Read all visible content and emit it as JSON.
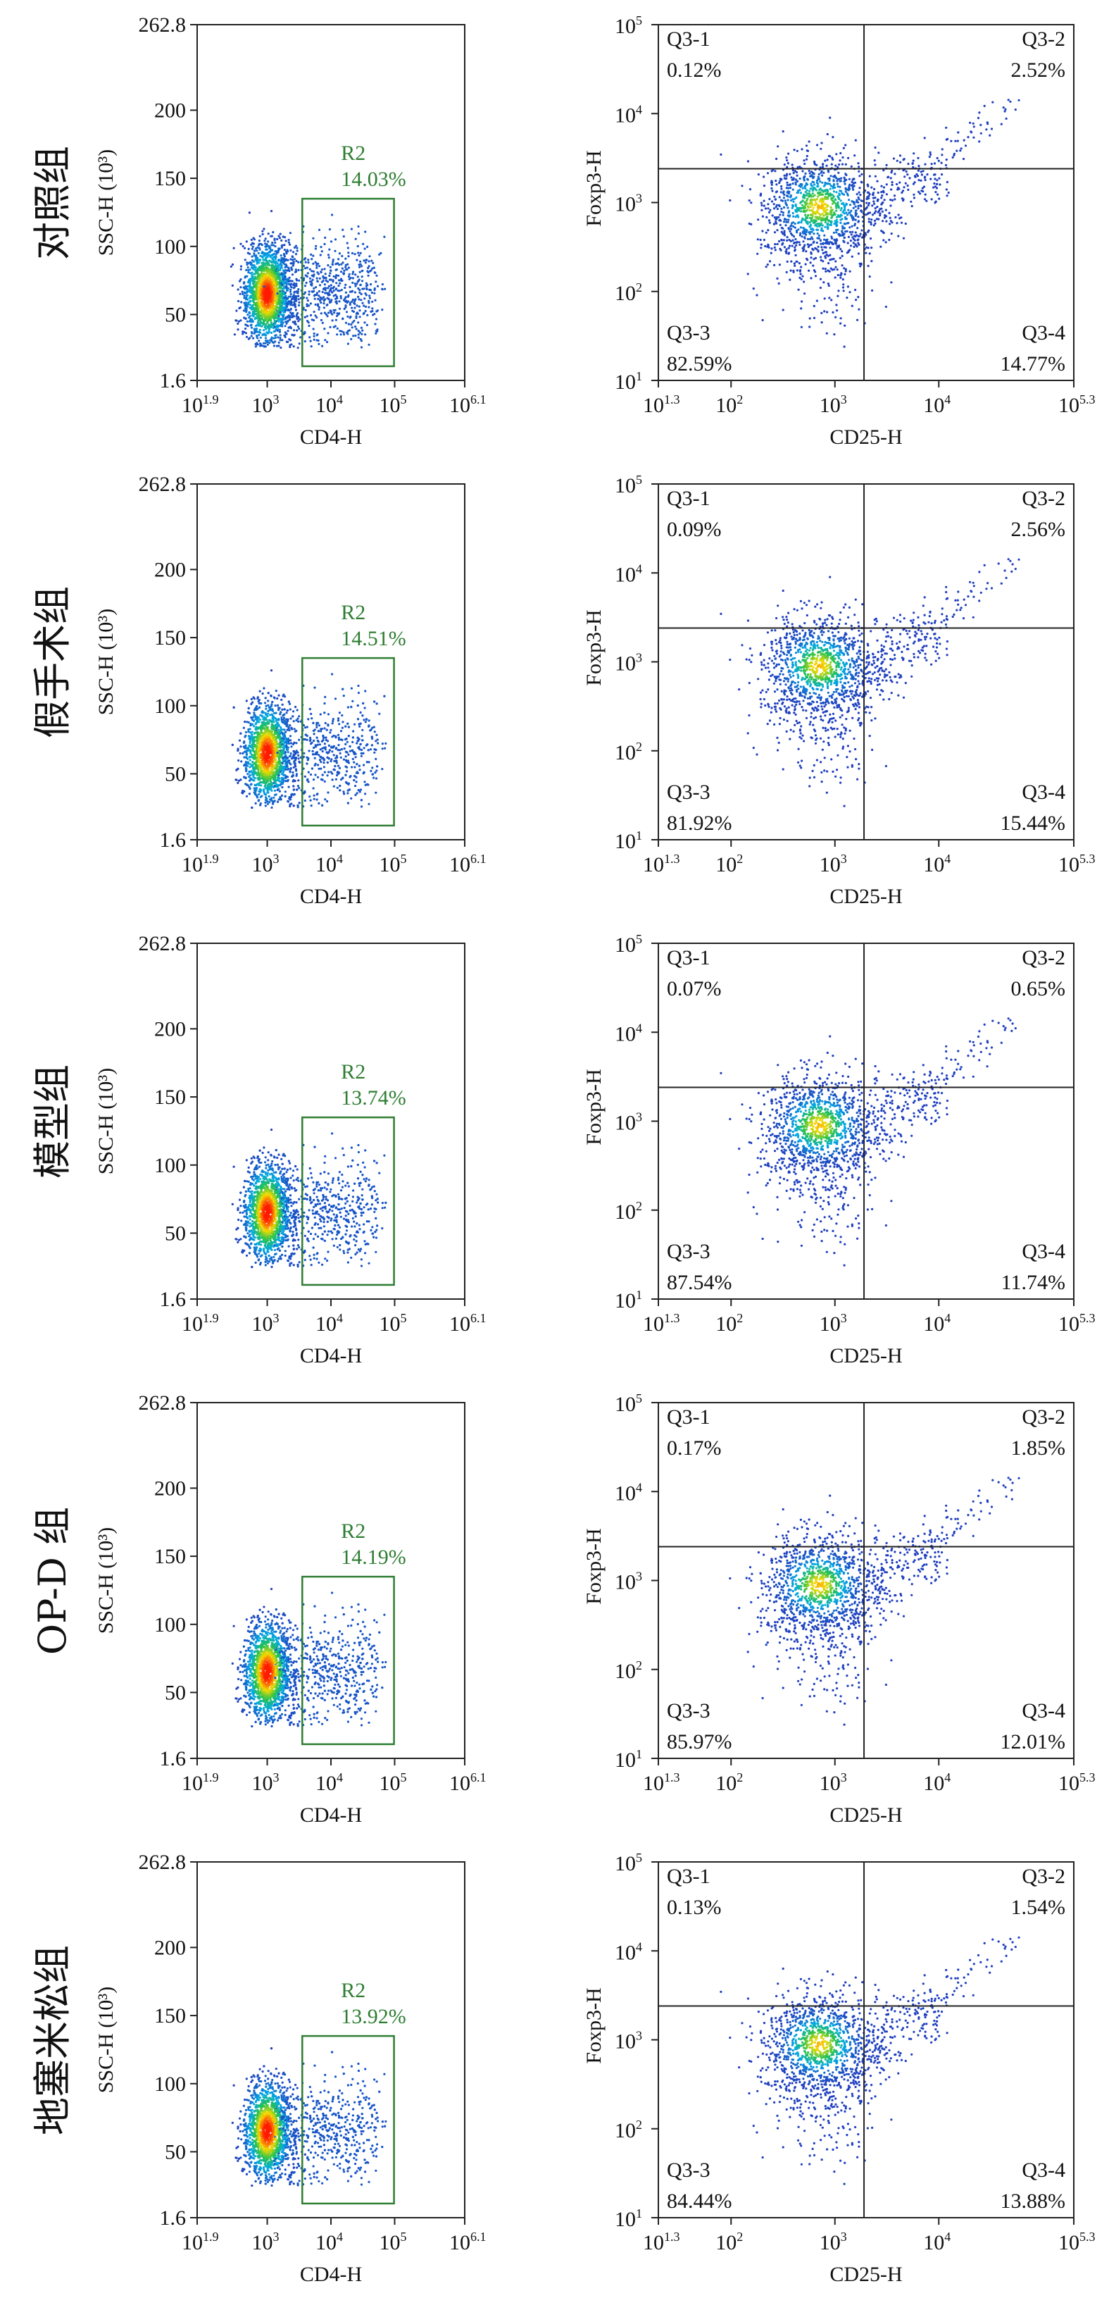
{
  "panels": [
    {
      "group_label": "对照组",
      "scatter": {
        "xlabel": "CD4-H",
        "ylabel": "SSC-H (10³)",
        "y_ticks": [
          "262.8",
          "200",
          "150",
          "100",
          "50",
          "1.6"
        ],
        "x_ticks": [
          {
            "base": "10",
            "exp": "1.9"
          },
          {
            "base": "10",
            "exp": "3"
          },
          {
            "base": "10",
            "exp": "4"
          },
          {
            "base": "10",
            "exp": "5"
          },
          {
            "base": "10",
            "exp": "6.1"
          }
        ],
        "gate_name": "R2",
        "gate_pct": "14.03%"
      },
      "quadrant": {
        "xlabel": "CD25-H",
        "ylabel": "Foxp3-H",
        "x_ticks": [
          {
            "base": "10",
            "exp": "1.3"
          },
          {
            "base": "10",
            "exp": "2"
          },
          {
            "base": "10",
            "exp": "3"
          },
          {
            "base": "10",
            "exp": "4"
          },
          {
            "base": "10",
            "exp": "5.3"
          }
        ],
        "y_ticks": [
          {
            "base": "10",
            "exp": "5"
          },
          {
            "base": "10",
            "exp": "4"
          },
          {
            "base": "10",
            "exp": "3"
          },
          {
            "base": "10",
            "exp": "2"
          },
          {
            "base": "10",
            "exp": "1"
          }
        ],
        "q1": {
          "name": "Q3-1",
          "pct": "0.12%"
        },
        "q2": {
          "name": "Q3-2",
          "pct": "2.52%"
        },
        "q3": {
          "name": "Q3-3",
          "pct": "82.59%"
        },
        "q4": {
          "name": "Q3-4",
          "pct": "14.77%"
        }
      }
    },
    {
      "group_label": "假手术组",
      "scatter": {
        "xlabel": "CD4-H",
        "ylabel": "SSC-H (10³)",
        "y_ticks": [
          "262.8",
          "200",
          "150",
          "100",
          "50",
          "1.6"
        ],
        "x_ticks": [
          {
            "base": "10",
            "exp": "1.9"
          },
          {
            "base": "10",
            "exp": "3"
          },
          {
            "base": "10",
            "exp": "4"
          },
          {
            "base": "10",
            "exp": "5"
          },
          {
            "base": "10",
            "exp": "6.1"
          }
        ],
        "gate_name": "R2",
        "gate_pct": "14.51%"
      },
      "quadrant": {
        "xlabel": "CD25-H",
        "ylabel": "Foxp3-H",
        "x_ticks": [
          {
            "base": "10",
            "exp": "1.3"
          },
          {
            "base": "10",
            "exp": "2"
          },
          {
            "base": "10",
            "exp": "3"
          },
          {
            "base": "10",
            "exp": "4"
          },
          {
            "base": "10",
            "exp": "5.3"
          }
        ],
        "y_ticks": [
          {
            "base": "10",
            "exp": "5"
          },
          {
            "base": "10",
            "exp": "4"
          },
          {
            "base": "10",
            "exp": "3"
          },
          {
            "base": "10",
            "exp": "2"
          },
          {
            "base": "10",
            "exp": "1"
          }
        ],
        "q1": {
          "name": "Q3-1",
          "pct": "0.09%"
        },
        "q2": {
          "name": "Q3-2",
          "pct": "2.56%"
        },
        "q3": {
          "name": "Q3-3",
          "pct": "81.92%"
        },
        "q4": {
          "name": "Q3-4",
          "pct": "15.44%"
        }
      }
    },
    {
      "group_label": "模型组",
      "scatter": {
        "xlabel": "CD4-H",
        "ylabel": "SSC-H (10³)",
        "y_ticks": [
          "262.8",
          "200",
          "150",
          "100",
          "50",
          "1.6"
        ],
        "x_ticks": [
          {
            "base": "10",
            "exp": "1.9"
          },
          {
            "base": "10",
            "exp": "3"
          },
          {
            "base": "10",
            "exp": "4"
          },
          {
            "base": "10",
            "exp": "5"
          },
          {
            "base": "10",
            "exp": "6.1"
          }
        ],
        "gate_name": "R2",
        "gate_pct": "13.74%"
      },
      "quadrant": {
        "xlabel": "CD25-H",
        "ylabel": "Foxp3-H",
        "x_ticks": [
          {
            "base": "10",
            "exp": "1.3"
          },
          {
            "base": "10",
            "exp": "2"
          },
          {
            "base": "10",
            "exp": "3"
          },
          {
            "base": "10",
            "exp": "4"
          },
          {
            "base": "10",
            "exp": "5.3"
          }
        ],
        "y_ticks": [
          {
            "base": "10",
            "exp": "5"
          },
          {
            "base": "10",
            "exp": "4"
          },
          {
            "base": "10",
            "exp": "3"
          },
          {
            "base": "10",
            "exp": "2"
          },
          {
            "base": "10",
            "exp": "1"
          }
        ],
        "q1": {
          "name": "Q3-1",
          "pct": "0.07%"
        },
        "q2": {
          "name": "Q3-2",
          "pct": "0.65%"
        },
        "q3": {
          "name": "Q3-3",
          "pct": "87.54%"
        },
        "q4": {
          "name": "Q3-4",
          "pct": "11.74%"
        }
      }
    },
    {
      "group_label": "OP-D 组",
      "scatter": {
        "xlabel": "CD4-H",
        "ylabel": "SSC-H (10³)",
        "y_ticks": [
          "262.8",
          "200",
          "150",
          "100",
          "50",
          "1.6"
        ],
        "x_ticks": [
          {
            "base": "10",
            "exp": "1.9"
          },
          {
            "base": "10",
            "exp": "3"
          },
          {
            "base": "10",
            "exp": "4"
          },
          {
            "base": "10",
            "exp": "5"
          },
          {
            "base": "10",
            "exp": "6.1"
          }
        ],
        "gate_name": "R2",
        "gate_pct": "14.19%"
      },
      "quadrant": {
        "xlabel": "CD25-H",
        "ylabel": "Foxp3-H",
        "x_ticks": [
          {
            "base": "10",
            "exp": "1.3"
          },
          {
            "base": "10",
            "exp": "2"
          },
          {
            "base": "10",
            "exp": "3"
          },
          {
            "base": "10",
            "exp": "4"
          },
          {
            "base": "10",
            "exp": "5.3"
          }
        ],
        "y_ticks": [
          {
            "base": "10",
            "exp": "5"
          },
          {
            "base": "10",
            "exp": "4"
          },
          {
            "base": "10",
            "exp": "3"
          },
          {
            "base": "10",
            "exp": "2"
          },
          {
            "base": "10",
            "exp": "1"
          }
        ],
        "q1": {
          "name": "Q3-1",
          "pct": "0.17%"
        },
        "q2": {
          "name": "Q3-2",
          "pct": "1.85%"
        },
        "q3": {
          "name": "Q3-3",
          "pct": "85.97%"
        },
        "q4": {
          "name": "Q3-4",
          "pct": "12.01%"
        }
      }
    },
    {
      "group_label": "地塞米松组",
      "scatter": {
        "xlabel": "CD4-H",
        "ylabel": "SSC-H (10³)",
        "y_ticks": [
          "262.8",
          "200",
          "150",
          "100",
          "50",
          "1.6"
        ],
        "x_ticks": [
          {
            "base": "10",
            "exp": "1.9"
          },
          {
            "base": "10",
            "exp": "3"
          },
          {
            "base": "10",
            "exp": "4"
          },
          {
            "base": "10",
            "exp": "5"
          },
          {
            "base": "10",
            "exp": "6.1"
          }
        ],
        "gate_name": "R2",
        "gate_pct": "13.92%"
      },
      "quadrant": {
        "xlabel": "CD25-H",
        "ylabel": "Foxp3-H",
        "x_ticks": [
          {
            "base": "10",
            "exp": "1.3"
          },
          {
            "base": "10",
            "exp": "2"
          },
          {
            "base": "10",
            "exp": "3"
          },
          {
            "base": "10",
            "exp": "4"
          },
          {
            "base": "10",
            "exp": "5.3"
          }
        ],
        "y_ticks": [
          {
            "base": "10",
            "exp": "5"
          },
          {
            "base": "10",
            "exp": "4"
          },
          {
            "base": "10",
            "exp": "3"
          },
          {
            "base": "10",
            "exp": "2"
          },
          {
            "base": "10",
            "exp": "1"
          }
        ],
        "q1": {
          "name": "Q3-1",
          "pct": "0.13%"
        },
        "q2": {
          "name": "Q3-2",
          "pct": "1.54%"
        },
        "q3": {
          "name": "Q3-3",
          "pct": "84.44%"
        },
        "q4": {
          "name": "Q3-4",
          "pct": "13.88%"
        }
      }
    }
  ],
  "colors": {
    "gate": "#2e7d32",
    "density_low": "#1f3fbf",
    "density_mid": "#27c24a",
    "density_high": "#ff1a00"
  },
  "chart_data": [
    {
      "type": "scatter",
      "group": "对照组",
      "panel": "CD4 vs SSC",
      "xlabel": "CD4-H",
      "ylabel": "SSC-H (10³)",
      "xlim_log10": [
        1.9,
        6.1
      ],
      "ylim": [
        1.6,
        262.8
      ],
      "gate": {
        "name": "R2",
        "percent": 14.03,
        "x_range_log10": [
          3.55,
          4.99
        ],
        "y_range": [
          12,
          135
        ]
      },
      "population_center": {
        "x_log10": 3.0,
        "y": 65
      }
    },
    {
      "type": "scatter",
      "group": "对照组",
      "panel": "CD25 vs Foxp3",
      "xlabel": "CD25-H",
      "ylabel": "Foxp3-H",
      "xlim_log10": [
        1.3,
        5.3
      ],
      "ylim_log10": [
        1,
        5
      ],
      "quadrant_split": {
        "x_log10": 3.28,
        "y_log10": 3.38
      },
      "quadrants": {
        "Q3-1": 0.12,
        "Q3-2": 2.52,
        "Q3-3": 82.59,
        "Q3-4": 14.77
      }
    },
    {
      "type": "scatter",
      "group": "假手术组",
      "panel": "CD4 vs SSC",
      "xlabel": "CD4-H",
      "ylabel": "SSC-H (10³)",
      "xlim_log10": [
        1.9,
        6.1
      ],
      "ylim": [
        1.6,
        262.8
      ],
      "gate": {
        "name": "R2",
        "percent": 14.51,
        "x_range_log10": [
          3.55,
          4.99
        ],
        "y_range": [
          12,
          135
        ]
      },
      "population_center": {
        "x_log10": 3.0,
        "y": 65
      }
    },
    {
      "type": "scatter",
      "group": "假手术组",
      "panel": "CD25 vs Foxp3",
      "xlabel": "CD25-H",
      "ylabel": "Foxp3-H",
      "xlim_log10": [
        1.3,
        5.3
      ],
      "ylim_log10": [
        1,
        5
      ],
      "quadrant_split": {
        "x_log10": 3.28,
        "y_log10": 3.38
      },
      "quadrants": {
        "Q3-1": 0.09,
        "Q3-2": 2.56,
        "Q3-3": 81.92,
        "Q3-4": 15.44
      }
    },
    {
      "type": "scatter",
      "group": "模型组",
      "panel": "CD4 vs SSC",
      "xlabel": "CD4-H",
      "ylabel": "SSC-H (10³)",
      "xlim_log10": [
        1.9,
        6.1
      ],
      "ylim": [
        1.6,
        262.8
      ],
      "gate": {
        "name": "R2",
        "percent": 13.74,
        "x_range_log10": [
          3.55,
          4.99
        ],
        "y_range": [
          12,
          135
        ]
      },
      "population_center": {
        "x_log10": 3.0,
        "y": 65
      }
    },
    {
      "type": "scatter",
      "group": "模型组",
      "panel": "CD25 vs Foxp3",
      "xlabel": "CD25-H",
      "ylabel": "Foxp3-H",
      "xlim_log10": [
        1.3,
        5.3
      ],
      "ylim_log10": [
        1,
        5
      ],
      "quadrant_split": {
        "x_log10": 3.28,
        "y_log10": 3.38
      },
      "quadrants": {
        "Q3-1": 0.07,
        "Q3-2": 0.65,
        "Q3-3": 87.54,
        "Q3-4": 11.74
      }
    },
    {
      "type": "scatter",
      "group": "OP-D 组",
      "panel": "CD4 vs SSC",
      "xlabel": "CD4-H",
      "ylabel": "SSC-H (10³)",
      "xlim_log10": [
        1.9,
        6.1
      ],
      "ylim": [
        1.6,
        262.8
      ],
      "gate": {
        "name": "R2",
        "percent": 14.19,
        "x_range_log10": [
          3.55,
          4.99
        ],
        "y_range": [
          12,
          135
        ]
      },
      "population_center": {
        "x_log10": 3.0,
        "y": 65
      }
    },
    {
      "type": "scatter",
      "group": "OP-D 组",
      "panel": "CD25 vs Foxp3",
      "xlabel": "CD25-H",
      "ylabel": "Foxp3-H",
      "xlim_log10": [
        1.3,
        5.3
      ],
      "ylim_log10": [
        1,
        5
      ],
      "quadrant_split": {
        "x_log10": 3.28,
        "y_log10": 3.38
      },
      "quadrants": {
        "Q3-1": 0.17,
        "Q3-2": 1.85,
        "Q3-3": 85.97,
        "Q3-4": 12.01
      }
    },
    {
      "type": "scatter",
      "group": "地塞米松组",
      "panel": "CD4 vs SSC",
      "xlabel": "CD4-H",
      "ylabel": "SSC-H (10³)",
      "xlim_log10": [
        1.9,
        6.1
      ],
      "ylim": [
        1.6,
        262.8
      ],
      "gate": {
        "name": "R2",
        "percent": 13.92,
        "x_range_log10": [
          3.55,
          4.99
        ],
        "y_range": [
          12,
          135
        ]
      },
      "population_center": {
        "x_log10": 3.0,
        "y": 65
      }
    },
    {
      "type": "scatter",
      "group": "地塞米松组",
      "panel": "CD25 vs Foxp3",
      "xlabel": "CD25-H",
      "ylabel": "Foxp3-H",
      "xlim_log10": [
        1.3,
        5.3
      ],
      "ylim_log10": [
        1,
        5
      ],
      "quadrant_split": {
        "x_log10": 3.28,
        "y_log10": 3.38
      },
      "quadrants": {
        "Q3-1": 0.13,
        "Q3-2": 1.54,
        "Q3-3": 84.44,
        "Q3-4": 13.88
      }
    }
  ]
}
